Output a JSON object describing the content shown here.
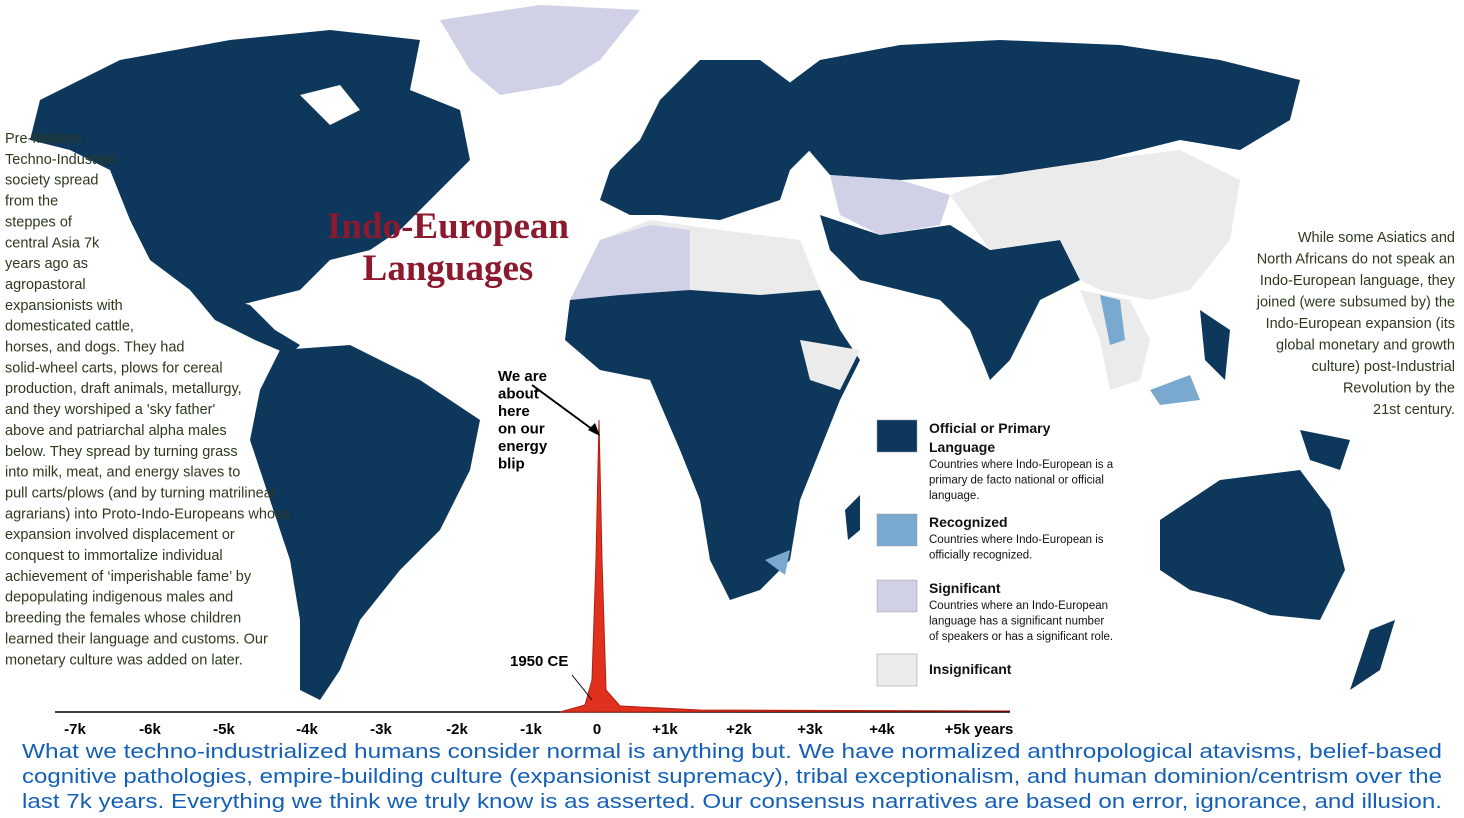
{
  "title": [
    "Indo-European",
    "Languages"
  ],
  "left_text": [
    "Pre-Modern",
    "Techno-Industrial",
    "society spread",
    "from the",
    "steppes of",
    "central Asia 7k",
    "years ago as",
    "agropastoral",
    "expansionists with",
    "domesticated cattle,",
    "horses, and dogs. They had",
    "solid-wheel carts, plows for cereal",
    "production, draft animals, metallurgy,",
    "and they worshiped a 'sky father'",
    "above and patriarchal alpha males",
    "below. They spread by turning grass",
    "into milk, meat, and energy slaves to",
    "pull carts/plows (and by turning matrilineal",
    "agrarians) into Proto-Indo-Europeans whose",
    "expansion involved displacement or",
    "conquest to immortalize individual",
    "achievement of ‘imperishable fame’ by",
    "depopulating indigenous males and",
    "breeding the females whose children",
    "learned their language and customs. Our",
    "monetary culture was added on later."
  ],
  "right_text": [
    "While some Asiatics and",
    "North Africans do not speak an",
    "Indo-European language, they",
    "joined (were subsumed by) the",
    "Indo-European expansion (its",
    "global monetary and growth",
    "culture) post-Industrial",
    "Revolution by the",
    "21st century."
  ],
  "annotation": [
    "We are",
    "about",
    "here",
    "on our",
    "energy",
    "blip"
  ],
  "marker_label": "1950 CE",
  "timeline_ticks": [
    "-7k",
    "-6k",
    "-5k",
    "-4k",
    "-3k",
    "-2k",
    "-1k",
    "0",
    "+1k",
    "+2k",
    "+3k",
    "+4k",
    "+5k years"
  ],
  "legend": [
    {
      "title": [
        "Official or Primary",
        "Language"
      ],
      "description": [
        "Countries where Indo-European is a",
        "primary de facto national or official",
        "language."
      ]
    },
    {
      "title": [
        "Recognized"
      ],
      "description": [
        "Countries where Indo-European is",
        "officially recognized."
      ]
    },
    {
      "title": [
        "Significant"
      ],
      "description": [
        "Countries where an Indo-European",
        "language has a significant number",
        "of speakers or has a significant role."
      ]
    },
    {
      "title": [
        "Insignificant"
      ],
      "description": []
    }
  ],
  "footer": [
    "What we techno-industrialized humans consider normal is anything but.  We have normalized anthropological atavisms, belief-based",
    "cognitive pathologies, empire-building culture (expansionist supremacy), tribal exceptionalism, and human dominion/centrism over the",
    "last 7k years. Everything we think we truly know is as asserted. Our consensus narratives are based on error, ignorance, and illusion."
  ]
}
